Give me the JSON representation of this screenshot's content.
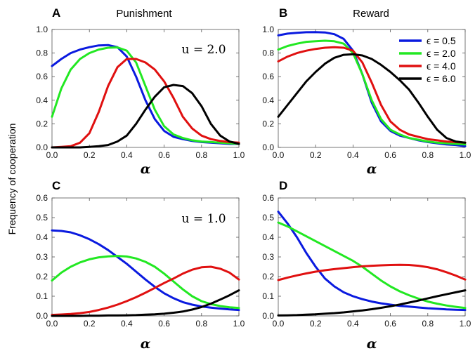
{
  "ylabel": "Frequency of cooperation",
  "colors": {
    "blue": "#0a1adf",
    "green": "#22e822",
    "red": "#e01010",
    "black": "#000000"
  },
  "chart_data": [
    {
      "type": "line",
      "letter": "A",
      "title": "Punishment",
      "xlabel": "α",
      "annotation": "u = 2.0",
      "xlim": [
        0,
        1
      ],
      "ylim": [
        0,
        1.0
      ],
      "xticks": [
        "0.0",
        "0.2",
        "0.4",
        "0.6",
        "0.8",
        "1.0"
      ],
      "yticks": [
        "0.0",
        "0.2",
        "0.4",
        "0.6",
        "0.8",
        "1.0"
      ],
      "x": [
        0,
        0.05,
        0.1,
        0.15,
        0.2,
        0.25,
        0.3,
        0.35,
        0.4,
        0.45,
        0.5,
        0.55,
        0.6,
        0.65,
        0.7,
        0.75,
        0.8,
        0.85,
        0.9,
        0.95,
        1.0
      ],
      "series": [
        {
          "color": "#0a1adf",
          "values": [
            0.69,
            0.75,
            0.8,
            0.83,
            0.85,
            0.865,
            0.868,
            0.85,
            0.77,
            0.6,
            0.4,
            0.24,
            0.14,
            0.09,
            0.07,
            0.055,
            0.045,
            0.04,
            0.035,
            0.03,
            0.03
          ]
        },
        {
          "color": "#22e822",
          "values": [
            0.26,
            0.5,
            0.66,
            0.75,
            0.8,
            0.83,
            0.845,
            0.848,
            0.82,
            0.72,
            0.52,
            0.32,
            0.18,
            0.11,
            0.08,
            0.06,
            0.05,
            0.045,
            0.04,
            0.035,
            0.03
          ]
        },
        {
          "color": "#e01010",
          "values": [
            0.0,
            0.005,
            0.01,
            0.04,
            0.12,
            0.3,
            0.52,
            0.68,
            0.75,
            0.75,
            0.72,
            0.66,
            0.56,
            0.42,
            0.26,
            0.16,
            0.1,
            0.07,
            0.055,
            0.045,
            0.04
          ]
        },
        {
          "color": "#000000",
          "values": [
            0.0,
            0.0,
            0.0,
            0.0,
            0.005,
            0.01,
            0.02,
            0.05,
            0.1,
            0.2,
            0.32,
            0.43,
            0.51,
            0.53,
            0.52,
            0.46,
            0.35,
            0.2,
            0.1,
            0.05,
            0.03
          ]
        }
      ]
    },
    {
      "type": "line",
      "letter": "B",
      "title": "Reward",
      "xlabel": "α",
      "xlim": [
        0,
        1
      ],
      "ylim": [
        0,
        1.0
      ],
      "xticks": [
        "0.0",
        "0.2",
        "0.4",
        "0.6",
        "0.8",
        "1.0"
      ],
      "yticks": [
        "0.0",
        "0.2",
        "0.4",
        "0.6",
        "0.8",
        "1.0"
      ],
      "legend": [
        "ϵ = 0.5",
        "ϵ = 2.0",
        "ϵ = 4.0",
        "ϵ = 6.0"
      ],
      "legend_position": "top-right",
      "x": [
        0,
        0.05,
        0.1,
        0.15,
        0.2,
        0.25,
        0.3,
        0.35,
        0.4,
        0.45,
        0.5,
        0.55,
        0.6,
        0.65,
        0.7,
        0.75,
        0.8,
        0.85,
        0.9,
        0.95,
        1.0
      ],
      "series": [
        {
          "color": "#0a1adf",
          "values": [
            0.95,
            0.965,
            0.972,
            0.977,
            0.978,
            0.975,
            0.96,
            0.92,
            0.82,
            0.62,
            0.38,
            0.22,
            0.14,
            0.1,
            0.08,
            0.06,
            0.045,
            0.035,
            0.025,
            0.02,
            0.01
          ]
        },
        {
          "color": "#22e822",
          "values": [
            0.83,
            0.86,
            0.88,
            0.895,
            0.9,
            0.905,
            0.9,
            0.88,
            0.8,
            0.62,
            0.4,
            0.24,
            0.15,
            0.11,
            0.08,
            0.065,
            0.05,
            0.04,
            0.035,
            0.03,
            0.025
          ]
        },
        {
          "color": "#e01010",
          "values": [
            0.73,
            0.77,
            0.8,
            0.82,
            0.835,
            0.845,
            0.85,
            0.845,
            0.82,
            0.72,
            0.55,
            0.36,
            0.22,
            0.15,
            0.11,
            0.09,
            0.07,
            0.06,
            0.05,
            0.045,
            0.04
          ]
        },
        {
          "color": "#000000",
          "values": [
            0.26,
            0.36,
            0.46,
            0.56,
            0.64,
            0.71,
            0.76,
            0.785,
            0.79,
            0.78,
            0.75,
            0.7,
            0.64,
            0.57,
            0.49,
            0.38,
            0.26,
            0.15,
            0.08,
            0.05,
            0.04
          ]
        }
      ]
    },
    {
      "type": "line",
      "letter": "C",
      "xlabel": "α",
      "annotation": "u = 1.0",
      "xlim": [
        0,
        1
      ],
      "ylim": [
        0,
        0.6
      ],
      "xticks": [
        "0.0",
        "0.2",
        "0.4",
        "0.6",
        "0.8",
        "1.0"
      ],
      "yticks": [
        "0.0",
        "0.1",
        "0.2",
        "0.3",
        "0.4",
        "0.5",
        "0.6"
      ],
      "x": [
        0,
        0.05,
        0.1,
        0.15,
        0.2,
        0.25,
        0.3,
        0.35,
        0.4,
        0.45,
        0.5,
        0.55,
        0.6,
        0.65,
        0.7,
        0.75,
        0.8,
        0.85,
        0.9,
        0.95,
        1.0
      ],
      "series": [
        {
          "color": "#0a1adf",
          "values": [
            0.435,
            0.432,
            0.425,
            0.41,
            0.39,
            0.365,
            0.335,
            0.3,
            0.265,
            0.225,
            0.185,
            0.148,
            0.115,
            0.09,
            0.07,
            0.057,
            0.048,
            0.042,
            0.037,
            0.033,
            0.03
          ]
        },
        {
          "color": "#22e822",
          "values": [
            0.18,
            0.22,
            0.25,
            0.272,
            0.288,
            0.298,
            0.303,
            0.305,
            0.302,
            0.292,
            0.275,
            0.25,
            0.215,
            0.175,
            0.135,
            0.1,
            0.075,
            0.06,
            0.05,
            0.044,
            0.04
          ]
        },
        {
          "color": "#e01010",
          "values": [
            0.005,
            0.007,
            0.01,
            0.014,
            0.02,
            0.03,
            0.042,
            0.057,
            0.075,
            0.095,
            0.118,
            0.142,
            0.167,
            0.19,
            0.215,
            0.235,
            0.247,
            0.25,
            0.24,
            0.22,
            0.185
          ]
        },
        {
          "color": "#000000",
          "values": [
            0.0,
            0.0,
            0.0,
            0.0,
            0.001,
            0.001,
            0.002,
            0.002,
            0.003,
            0.004,
            0.006,
            0.008,
            0.011,
            0.016,
            0.022,
            0.032,
            0.045,
            0.062,
            0.083,
            0.105,
            0.13
          ]
        }
      ]
    },
    {
      "type": "line",
      "letter": "D",
      "xlabel": "α",
      "xlim": [
        0,
        1
      ],
      "ylim": [
        0,
        0.6
      ],
      "xticks": [
        "0.0",
        "0.2",
        "0.4",
        "0.6",
        "0.8",
        "1.0"
      ],
      "yticks": [
        "0.0",
        "0.1",
        "0.2",
        "0.3",
        "0.4",
        "0.5",
        "0.6"
      ],
      "x": [
        0,
        0.05,
        0.1,
        0.15,
        0.2,
        0.25,
        0.3,
        0.35,
        0.4,
        0.45,
        0.5,
        0.55,
        0.6,
        0.65,
        0.7,
        0.75,
        0.8,
        0.85,
        0.9,
        0.95,
        1.0
      ],
      "series": [
        {
          "color": "#0a1adf",
          "values": [
            0.53,
            0.47,
            0.4,
            0.32,
            0.25,
            0.19,
            0.15,
            0.12,
            0.1,
            0.085,
            0.073,
            0.064,
            0.057,
            0.051,
            0.047,
            0.043,
            0.039,
            0.036,
            0.033,
            0.031,
            0.03
          ]
        },
        {
          "color": "#22e822",
          "values": [
            0.475,
            0.455,
            0.43,
            0.405,
            0.38,
            0.355,
            0.33,
            0.305,
            0.28,
            0.25,
            0.215,
            0.18,
            0.15,
            0.125,
            0.105,
            0.088,
            0.073,
            0.062,
            0.053,
            0.046,
            0.04
          ]
        },
        {
          "color": "#e01010",
          "values": [
            0.182,
            0.195,
            0.206,
            0.216,
            0.225,
            0.232,
            0.238,
            0.243,
            0.248,
            0.252,
            0.255,
            0.257,
            0.259,
            0.26,
            0.259,
            0.255,
            0.248,
            0.237,
            0.222,
            0.205,
            0.185
          ]
        },
        {
          "color": "#000000",
          "values": [
            0.002,
            0.003,
            0.004,
            0.006,
            0.008,
            0.011,
            0.014,
            0.018,
            0.023,
            0.028,
            0.034,
            0.041,
            0.049,
            0.058,
            0.068,
            0.078,
            0.089,
            0.1,
            0.11,
            0.12,
            0.13
          ]
        }
      ]
    }
  ]
}
